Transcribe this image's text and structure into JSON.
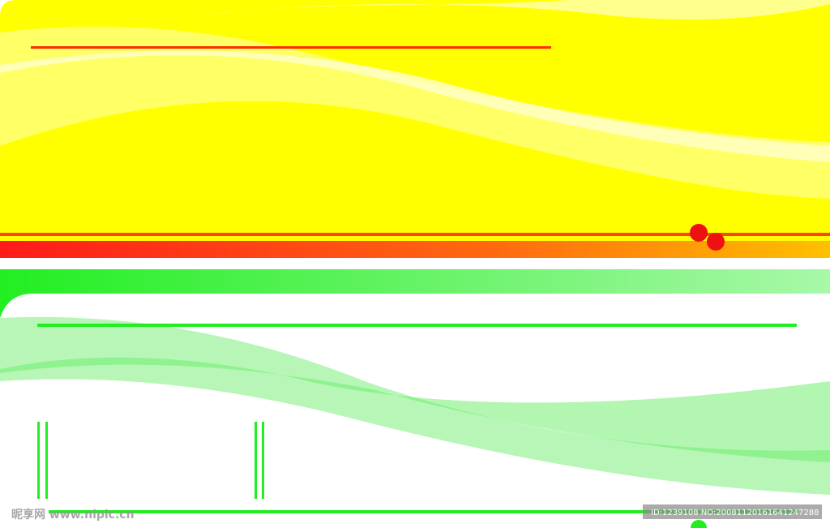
{
  "watermark": {
    "site": "昵享网 www.nipic.cn",
    "id": "ID:1239108 NO:20081120161641247288"
  }
}
